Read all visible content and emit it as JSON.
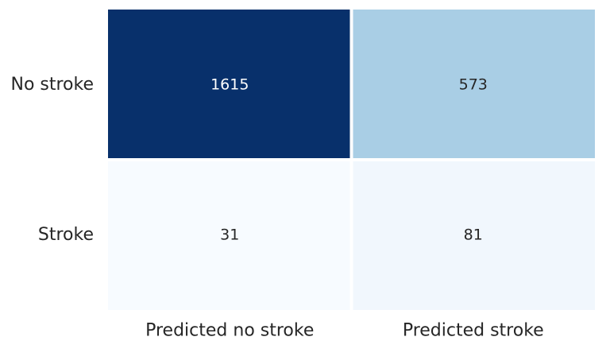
{
  "chart_data": {
    "type": "heatmap",
    "rows": [
      "No stroke",
      "Stroke"
    ],
    "columns": [
      "Predicted no stroke",
      "Predicted stroke"
    ],
    "values": [
      [
        1615,
        573
      ],
      [
        31,
        81
      ]
    ],
    "colormap": "Blues",
    "colorbar": false,
    "cell_gap_color": "#ffffff",
    "annot_dark_text": "#262626",
    "annot_light_text": "#ffffff",
    "tick_label_color": "#262626"
  }
}
